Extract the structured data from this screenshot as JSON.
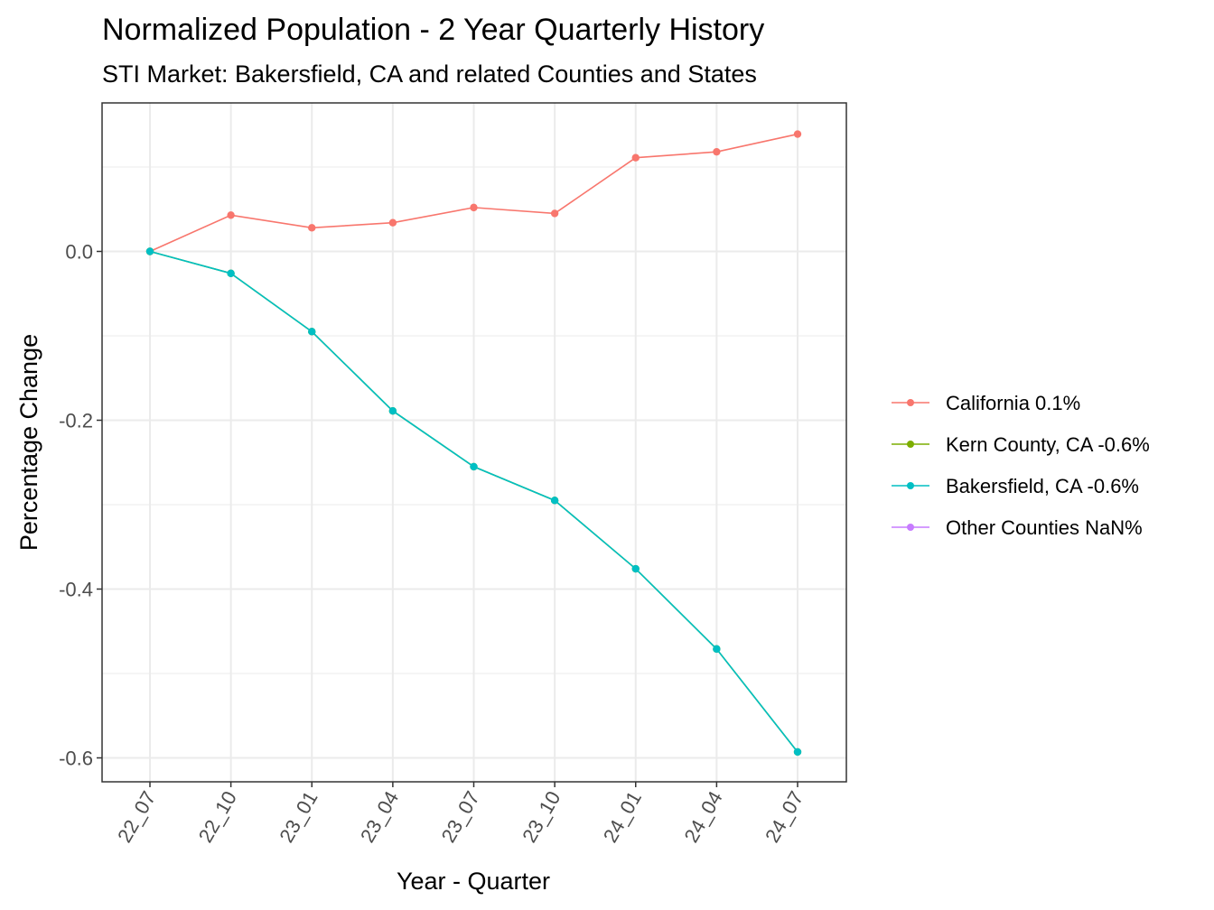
{
  "chart_data": {
    "type": "line",
    "title": "Normalized Population - 2 Year Quarterly History",
    "subtitle": "STI Market: Bakersfield, CA and related Counties and States",
    "xlabel": "Year - Quarter",
    "ylabel": "Percentage Change",
    "categories": [
      "22_07",
      "22_10",
      "23_01",
      "23_04",
      "23_07",
      "23_10",
      "24_01",
      "24_04",
      "24_07"
    ],
    "ylim": [
      -0.63,
      0.17
    ],
    "y_ticks": [
      0.0,
      -0.2,
      -0.4,
      -0.6
    ],
    "y_tick_labels": [
      "0.0",
      "-0.2",
      "-0.4",
      "-0.6"
    ],
    "y_minor_ticks": [
      0.1,
      -0.1,
      -0.3,
      -0.5
    ],
    "grid": true,
    "legend_position": "right",
    "series": [
      {
        "name": "California 0.1%",
        "color": "#F8766D",
        "values": [
          0.0,
          0.043,
          0.028,
          0.034,
          0.052,
          0.045,
          0.111,
          0.118,
          0.139
        ]
      },
      {
        "name": "Kern County, CA -0.6%",
        "color": "#7CAE00",
        "values": [
          0.0,
          -0.026,
          -0.095,
          -0.189,
          -0.255,
          -0.295,
          -0.376,
          -0.471,
          -0.593
        ]
      },
      {
        "name": "Bakersfield, CA -0.6%",
        "color": "#00BFC4",
        "values": [
          0.0,
          -0.026,
          -0.095,
          -0.189,
          -0.255,
          -0.295,
          -0.376,
          -0.471,
          -0.593
        ]
      },
      {
        "name": "Other Counties NaN%",
        "color": "#C77CFF",
        "values": [
          null,
          null,
          null,
          null,
          null,
          null,
          null,
          null,
          null
        ]
      }
    ]
  }
}
